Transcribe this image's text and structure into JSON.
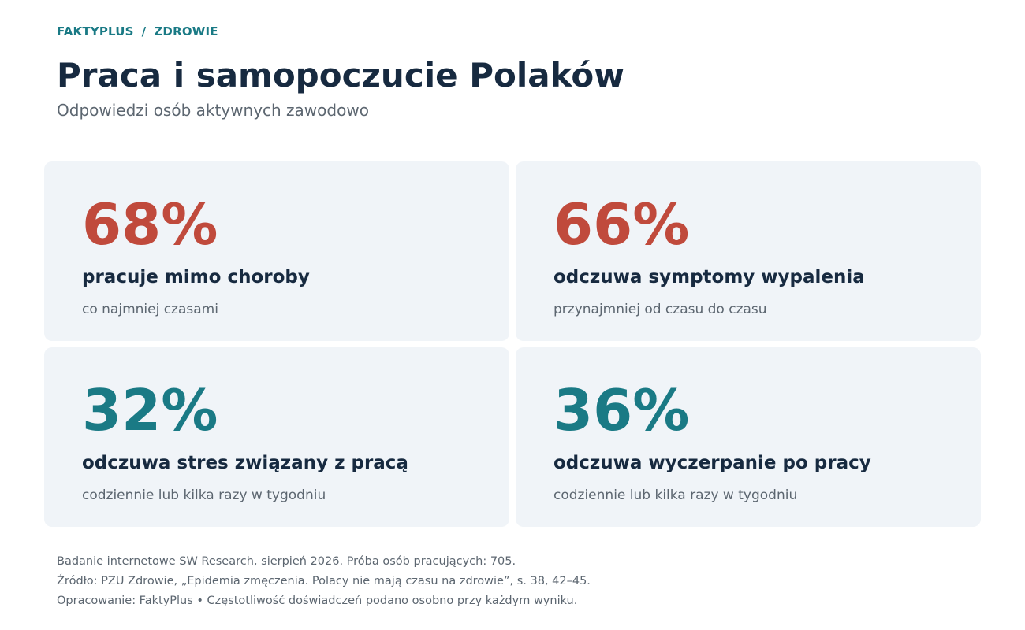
{
  "breadcrumb": {
    "section": "FAKTYPLUS",
    "separator": "/",
    "category": "ZDROWIE"
  },
  "header": {
    "title": "Praca i samopoczucie Polaków",
    "subtitle": "Odpowiedzi osób aktywnych zawodowo"
  },
  "colors": {
    "accent_red": "#c04a3c",
    "accent_teal": "#1a7a85",
    "heading": "#172a40",
    "card_bg": "#f0f4f8"
  },
  "stats": [
    {
      "value": "68%",
      "label": "pracuje mimo choroby",
      "note": "co najmniej czasami",
      "color": "red"
    },
    {
      "value": "66%",
      "label": "odczuwa symptomy wypalenia",
      "note": "przynajmniej od czasu do czasu",
      "color": "red"
    },
    {
      "value": "32%",
      "label": "odczuwa stres związany z pracą",
      "note": "codziennie lub kilka razy w tygodniu",
      "color": "teal"
    },
    {
      "value": "36%",
      "label": "odczuwa wyczerpanie po pracy",
      "note": "codziennie lub kilka razy w tygodniu",
      "color": "teal"
    }
  ],
  "footer": {
    "line1": "Badanie internetowe SW Research, sierpień 2026. Próba osób pracujących: 705.",
    "line2": "Źródło: PZU Zdrowie, „Epidemia zmęczenia. Polacy nie mają czasu na zdrowie”, s. 38, 42–45.",
    "line3": "Opracowanie: FaktyPlus  •  Częstotliwość doświadczeń podano osobno przy każdym wyniku."
  }
}
